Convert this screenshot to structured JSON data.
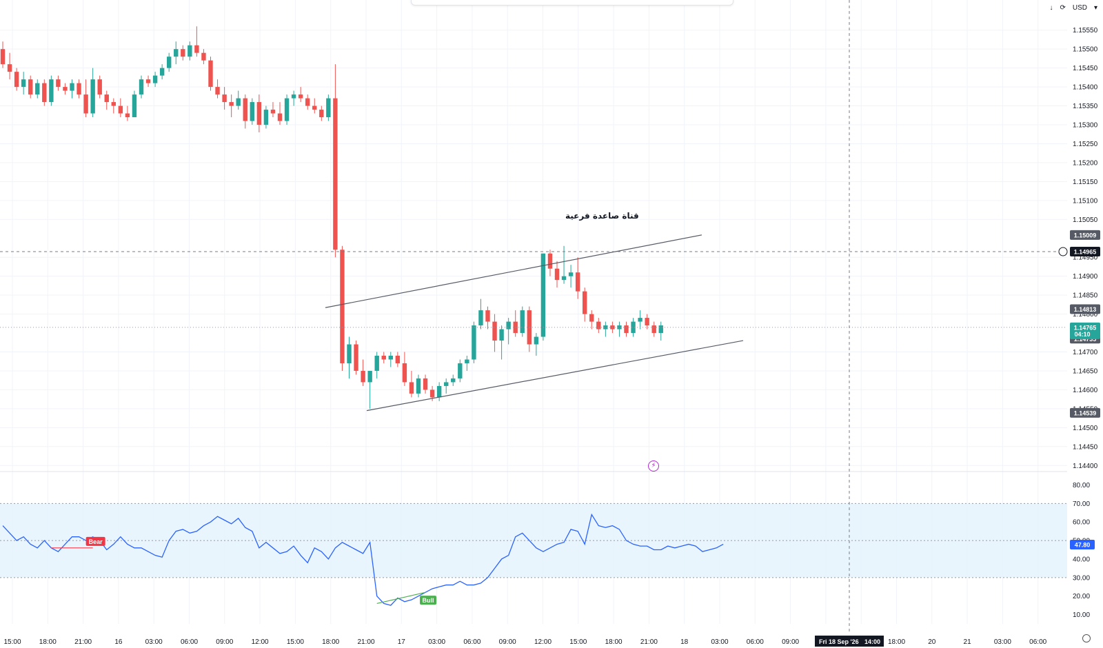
{
  "toolbar": {
    "download_icon": "arrow-down-icon",
    "refresh_icon": "refresh-icon",
    "currency": "USD",
    "dropdown_icon": "chevron-down-icon"
  },
  "annotation": {
    "channel_label": "قناة صاعدة فرعية"
  },
  "colors": {
    "up": "#26a69a",
    "down": "#ef5350",
    "rsi_line": "#2962ff",
    "rsi_band": "#e3f2fd",
    "bear": "#f23645",
    "bull": "#4caf50"
  },
  "chart_data": [
    {
      "type": "candlestick",
      "timeframe_labels": [
        "15:00",
        "18:00",
        "21:00",
        "16",
        "03:00",
        "06:00",
        "09:00",
        "12:00",
        "15:00",
        "18:00",
        "21:00",
        "17",
        "03:00",
        "06:00",
        "09:00",
        "12:00",
        "15:00",
        "18:00",
        "21:00",
        "18",
        "03:00",
        "06:00",
        "09:00",
        "12:00",
        "15:00",
        "18:00",
        "20",
        "21",
        "03:00",
        "06:00"
      ],
      "crosshair_time_label": "Fri 18 Sep '26",
      "crosshair_time_value": "14:00",
      "y_ticks": [
        "1.15550",
        "1.15500",
        "1.15450",
        "1.15400",
        "1.15350",
        "1.15300",
        "1.15250",
        "1.15200",
        "1.15150",
        "1.15100",
        "1.15050",
        "1.14950",
        "1.14900",
        "1.14850",
        "1.14800",
        "1.14700",
        "1.14650",
        "1.14600",
        "1.14550",
        "1.14500",
        "1.14450",
        "1.14400"
      ],
      "ylim": [
        1.14395,
        1.15575
      ],
      "price_labels": {
        "channel_top": "1.15009",
        "crosshair": "1.14965",
        "high_marker": "1.14813",
        "last_price": "1.14765",
        "countdown": "04:10",
        "prev_close": "1.14735",
        "low_marker": "1.14539"
      },
      "ohlc": [
        [
          1.155,
          1.1552,
          1.1545,
          1.1546
        ],
        [
          1.1546,
          1.1549,
          1.1542,
          1.1544
        ],
        [
          1.1544,
          1.1545,
          1.1539,
          1.154
        ],
        [
          1.154,
          1.1544,
          1.1538,
          1.1542
        ],
        [
          1.1542,
          1.1543,
          1.1537,
          1.1538
        ],
        [
          1.1538,
          1.1542,
          1.1537,
          1.1541
        ],
        [
          1.1541,
          1.1542,
          1.1535,
          1.1536
        ],
        [
          1.1536,
          1.1543,
          1.1535,
          1.1542
        ],
        [
          1.1542,
          1.1543,
          1.1539,
          1.154
        ],
        [
          1.154,
          1.1541,
          1.1538,
          1.1539
        ],
        [
          1.1539,
          1.1542,
          1.1537,
          1.1541
        ],
        [
          1.1541,
          1.1542,
          1.1537,
          1.1538
        ],
        [
          1.1538,
          1.1542,
          1.1532,
          1.1533
        ],
        [
          1.1533,
          1.1545,
          1.1532,
          1.1542
        ],
        [
          1.1542,
          1.1543,
          1.1537,
          1.1538
        ],
        [
          1.1538,
          1.1539,
          1.1534,
          1.1536
        ],
        [
          1.1536,
          1.1537,
          1.1533,
          1.1535
        ],
        [
          1.1535,
          1.1537,
          1.1532,
          1.1533
        ],
        [
          1.1533,
          1.1535,
          1.1531,
          1.1532
        ],
        [
          1.1532,
          1.1539,
          1.1532,
          1.1538
        ],
        [
          1.1538,
          1.1543,
          1.1537,
          1.1542
        ],
        [
          1.1542,
          1.1543,
          1.154,
          1.1541
        ],
        [
          1.1541,
          1.1544,
          1.154,
          1.1543
        ],
        [
          1.1543,
          1.1546,
          1.1542,
          1.1545
        ],
        [
          1.1545,
          1.1549,
          1.1544,
          1.1548
        ],
        [
          1.1548,
          1.1552,
          1.1546,
          1.155
        ],
        [
          1.155,
          1.1551,
          1.1547,
          1.1548
        ],
        [
          1.1548,
          1.1552,
          1.1547,
          1.1551
        ],
        [
          1.1551,
          1.1556,
          1.1548,
          1.1549
        ],
        [
          1.1549,
          1.155,
          1.1546,
          1.1547
        ],
        [
          1.1547,
          1.1548,
          1.1539,
          1.154
        ],
        [
          1.154,
          1.1542,
          1.1537,
          1.1538
        ],
        [
          1.1538,
          1.154,
          1.1534,
          1.1536
        ],
        [
          1.1536,
          1.1538,
          1.1532,
          1.1535
        ],
        [
          1.1535,
          1.1539,
          1.1534,
          1.1537
        ],
        [
          1.1537,
          1.1538,
          1.1529,
          1.1531
        ],
        [
          1.1531,
          1.1537,
          1.153,
          1.1536
        ],
        [
          1.1536,
          1.1538,
          1.1528,
          1.153
        ],
        [
          1.153,
          1.1535,
          1.1529,
          1.1534
        ],
        [
          1.1534,
          1.1536,
          1.1532,
          1.1533
        ],
        [
          1.1533,
          1.1536,
          1.153,
          1.1531
        ],
        [
          1.1531,
          1.1538,
          1.153,
          1.1537
        ],
        [
          1.1537,
          1.1539,
          1.1535,
          1.1538
        ],
        [
          1.1538,
          1.154,
          1.1536,
          1.1537
        ],
        [
          1.1537,
          1.1538,
          1.1534,
          1.1535
        ],
        [
          1.1535,
          1.1537,
          1.1533,
          1.1534
        ],
        [
          1.1534,
          1.1535,
          1.1531,
          1.1532
        ],
        [
          1.1532,
          1.1538,
          1.1531,
          1.1537
        ],
        [
          1.1537,
          1.1546,
          1.1495,
          1.1497
        ],
        [
          1.1497,
          1.1498,
          1.1465,
          1.1467
        ],
        [
          1.1467,
          1.1474,
          1.1463,
          1.1472
        ],
        [
          1.1472,
          1.1473,
          1.1464,
          1.1465
        ],
        [
          1.1465,
          1.1468,
          1.1461,
          1.1462
        ],
        [
          1.1462,
          1.1465,
          1.1455,
          1.1465
        ],
        [
          1.1465,
          1.147,
          1.1463,
          1.1469
        ],
        [
          1.1469,
          1.147,
          1.1467,
          1.1468
        ],
        [
          1.1468,
          1.147,
          1.1466,
          1.1469
        ],
        [
          1.1469,
          1.147,
          1.1466,
          1.1467
        ],
        [
          1.1467,
          1.147,
          1.1461,
          1.1462
        ],
        [
          1.1462,
          1.1465,
          1.1458,
          1.1459
        ],
        [
          1.1459,
          1.1464,
          1.1458,
          1.1463
        ],
        [
          1.1463,
          1.1464,
          1.1459,
          1.146
        ],
        [
          1.146,
          1.1461,
          1.1457,
          1.1458
        ],
        [
          1.1458,
          1.1462,
          1.1457,
          1.1461
        ],
        [
          1.1461,
          1.1463,
          1.1459,
          1.1462
        ],
        [
          1.1462,
          1.1464,
          1.1461,
          1.1463
        ],
        [
          1.1463,
          1.1468,
          1.1462,
          1.1467
        ],
        [
          1.1467,
          1.1469,
          1.1465,
          1.1468
        ],
        [
          1.1468,
          1.1478,
          1.1467,
          1.1477
        ],
        [
          1.1477,
          1.1484,
          1.1476,
          1.1481
        ],
        [
          1.1481,
          1.1482,
          1.1476,
          1.1478
        ],
        [
          1.1478,
          1.148,
          1.147,
          1.1473
        ],
        [
          1.1473,
          1.1477,
          1.1468,
          1.1476
        ],
        [
          1.1476,
          1.1479,
          1.1472,
          1.1478
        ],
        [
          1.1478,
          1.1481,
          1.1474,
          1.1475
        ],
        [
          1.1475,
          1.1482,
          1.1474,
          1.1481
        ],
        [
          1.1481,
          1.1482,
          1.147,
          1.1472
        ],
        [
          1.1472,
          1.1475,
          1.1469,
          1.1474
        ],
        [
          1.1474,
          1.1496,
          1.1473,
          1.1496
        ],
        [
          1.1496,
          1.1497,
          1.149,
          1.1492
        ],
        [
          1.1492,
          1.1494,
          1.1487,
          1.1489
        ],
        [
          1.1489,
          1.1498,
          1.1488,
          1.149
        ],
        [
          1.149,
          1.1493,
          1.1487,
          1.1491
        ],
        [
          1.1491,
          1.1495,
          1.1484,
          1.1486
        ],
        [
          1.1486,
          1.1487,
          1.1478,
          1.148
        ],
        [
          1.148,
          1.1481,
          1.1476,
          1.1478
        ],
        [
          1.1478,
          1.1479,
          1.1475,
          1.1476
        ],
        [
          1.1476,
          1.1478,
          1.1474,
          1.1477
        ],
        [
          1.1477,
          1.1478,
          1.1475,
          1.1476
        ],
        [
          1.1476,
          1.1478,
          1.1474,
          1.1477
        ],
        [
          1.1477,
          1.1478,
          1.1474,
          1.1475
        ],
        [
          1.1475,
          1.1479,
          1.1474,
          1.1478
        ],
        [
          1.1478,
          1.1481,
          1.1476,
          1.1479
        ],
        [
          1.1479,
          1.148,
          1.1476,
          1.1477
        ],
        [
          1.1477,
          1.1478,
          1.1474,
          1.1475
        ],
        [
          1.1475,
          1.1478,
          1.1473,
          1.1477
        ]
      ],
      "drawings": {
        "channel_upper": [
          [
            1.14817,
            0
          ],
          [
            1.15009,
            1
          ]
        ],
        "channel_lower": [
          [
            1.14545,
            0
          ],
          [
            1.1473,
            1
          ]
        ]
      }
    },
    {
      "type": "line",
      "name": "RSI",
      "y_ticks": [
        "80.00",
        "70.00",
        "60.00",
        "50.00",
        "40.00",
        "30.00",
        "20.00",
        "10.00"
      ],
      "ylim": [
        5,
        85
      ],
      "band": [
        30,
        70
      ],
      "last_value_label": "47.80",
      "values": [
        58,
        54,
        50,
        52,
        48,
        46,
        50,
        46,
        44,
        48,
        52,
        52,
        50,
        52,
        50,
        45,
        48,
        52,
        48,
        46,
        46,
        44,
        42,
        41,
        50,
        55,
        56,
        54,
        55,
        58,
        60,
        63,
        61,
        59,
        62,
        57,
        55,
        46,
        49,
        46,
        43,
        44,
        47,
        42,
        38,
        46,
        44,
        40,
        46,
        49,
        47,
        45,
        43,
        49,
        20,
        16,
        15,
        19,
        17,
        18,
        20,
        22,
        24,
        25,
        26,
        26,
        28,
        26,
        26,
        27,
        30,
        35,
        40,
        42,
        52,
        54,
        50,
        46,
        44,
        46,
        48,
        49,
        56,
        55,
        48,
        64,
        58,
        57,
        58,
        56,
        50,
        48,
        47,
        47,
        45,
        45,
        47,
        46,
        47,
        48,
        47,
        44,
        45,
        46,
        48
      ],
      "divergences": [
        {
          "label": "Bear"
        },
        {
          "label": "Bull"
        }
      ]
    }
  ]
}
